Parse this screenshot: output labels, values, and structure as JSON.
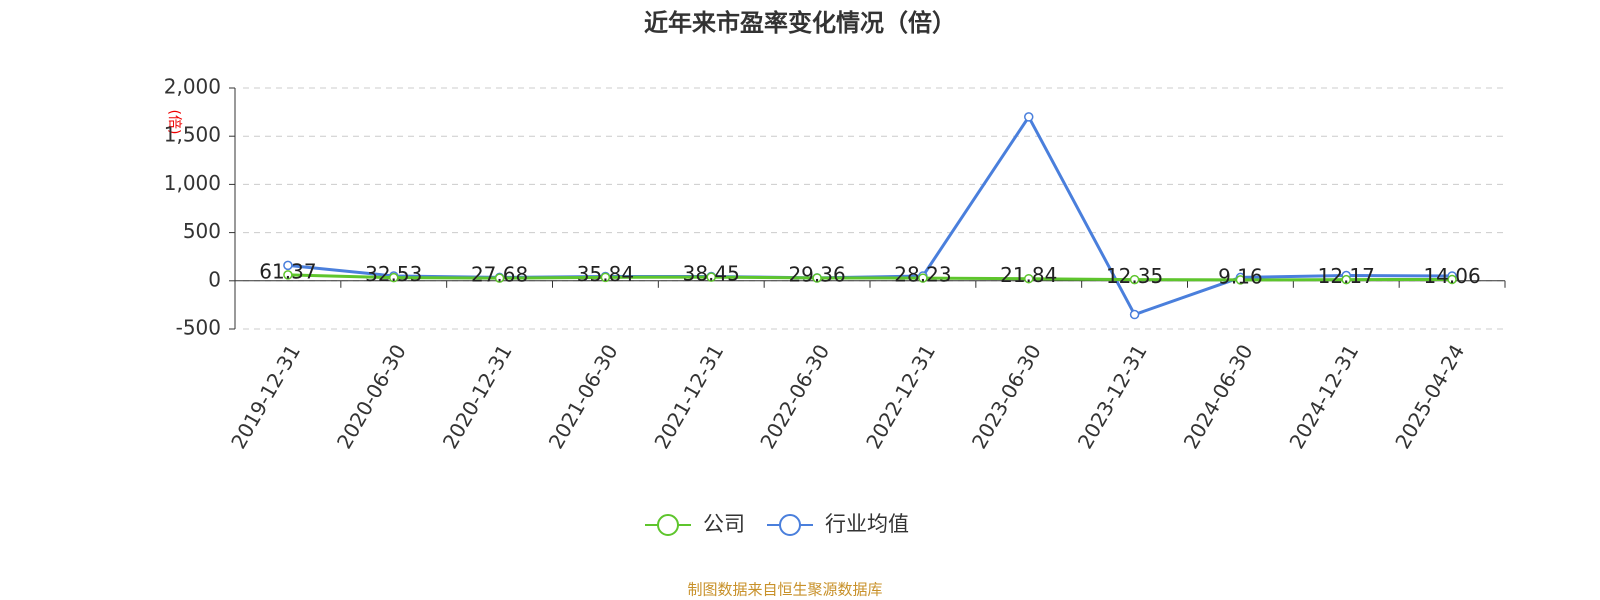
{
  "chart_data": {
    "type": "line",
    "title": "近年来市盈率变化情况（倍）",
    "y_label": "(倍)",
    "categories": [
      "2019-12-31",
      "2020-06-30",
      "2020-12-31",
      "2021-06-30",
      "2021-12-31",
      "2022-06-30",
      "2022-12-31",
      "2023-06-30",
      "2023-12-31",
      "2024-06-30",
      "2024-12-31",
      "2025-04-24"
    ],
    "series": [
      {
        "name": "公司",
        "color": "#5ec52d",
        "values": [
          61.37,
          32.53,
          27.68,
          35.84,
          38.45,
          29.36,
          28.23,
          21.84,
          12.35,
          9.16,
          12.17,
          14.06
        ]
      },
      {
        "name": "行业均值",
        "color": "#4a7fdc",
        "values": [
          160,
          50,
          35,
          45,
          45,
          30,
          50,
          1700,
          -350,
          35,
          55,
          50
        ]
      }
    ],
    "ylim": [
      -500,
      2000
    ],
    "yticks": [
      -500,
      0,
      500,
      {
        "value": 1000,
        "label": "1,000"
      },
      {
        "value": 1500,
        "label": "1,500"
      },
      {
        "value": 2000,
        "label": "2,000"
      }
    ],
    "grid": true,
    "source": "制图数据来自恒生聚源数据库"
  }
}
